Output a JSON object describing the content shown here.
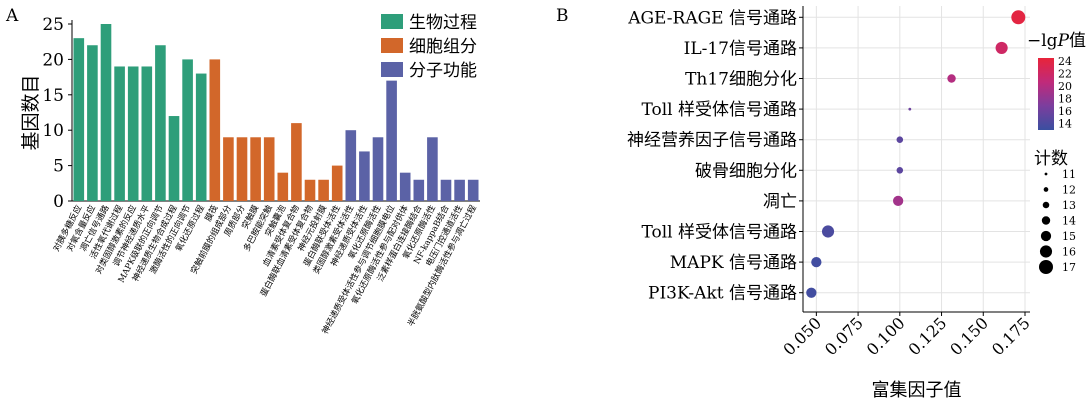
{
  "panel_a": {
    "letter": "A"
  },
  "panel_b": {
    "letter": "B"
  },
  "chart_data": [
    {
      "type": "bar",
      "title": "",
      "xlabel": "",
      "ylabel": "基因数目",
      "ylim": [
        0,
        25
      ],
      "yticks": [
        0,
        5,
        10,
        15,
        20,
        25
      ],
      "grid": false,
      "legend_position": "top-right",
      "series_colors": {
        "生物过程": "#2e9e7a",
        "细胞组分": "#d2672a",
        "分子功能": "#5b62a6"
      },
      "legend": [
        "生物过程",
        "细胞组分",
        "分子功能"
      ],
      "categories": [
        "对胰多糖反应",
        "对氧含量反应",
        "凋亡信号通路",
        "活性氧代谢过程",
        "对类固醇激素的反应",
        "调节神经递质水平",
        "MAPK级联的正向调节",
        "神经递质生物合成过程",
        "激酶活性的正向调节",
        "氧化还原过程",
        "膜筏",
        "突触前膜的组成部分",
        "周质部分",
        "突触膜",
        "多巴胺能突触",
        "突触囊泡",
        "血清素受体复合物",
        "蛋白酶联血清素受体复合物",
        "神经元投射膜",
        "蛋白酶联受体活性",
        "类固醇激素受体活性",
        "神经递质受体活性",
        "氧化还原酶活性",
        "神经递质受体活性参与调节细胞膜电位",
        "氧化还原酶活性参与配对供体",
        "泛素样蛋白连接酶结合",
        "氧化还原酶活性",
        "NF-kappaB结合",
        "电压门控通道活性",
        "半胱氨酸型内肽酶活性参与凋亡过程"
      ],
      "values": [
        23,
        22,
        25,
        19,
        19,
        19,
        22,
        12,
        20,
        18,
        20,
        9,
        9,
        9,
        9,
        4,
        11,
        3,
        3,
        5,
        10,
        7,
        9,
        17,
        4,
        3,
        9,
        3,
        3,
        3
      ],
      "groups": [
        "生物过程",
        "生物过程",
        "生物过程",
        "生物过程",
        "生物过程",
        "生物过程",
        "生物过程",
        "生物过程",
        "生物过程",
        "生物过程",
        "细胞组分",
        "细胞组分",
        "细胞组分",
        "细胞组分",
        "细胞组分",
        "细胞组分",
        "细胞组分",
        "细胞组分",
        "细胞组分",
        "细胞组分",
        "分子功能",
        "分子功能",
        "分子功能",
        "分子功能",
        "分子功能",
        "分子功能",
        "分子功能",
        "分子功能",
        "分子功能",
        "分子功能"
      ]
    },
    {
      "type": "scatter",
      "title": "",
      "xlabel": "富集因子值",
      "ylabel": "",
      "xlim": [
        0.042,
        0.178
      ],
      "xticks": [
        0.05,
        0.075,
        0.1,
        0.125,
        0.15,
        0.175
      ],
      "xtick_labels": [
        "0.050",
        "0.075",
        "0.100",
        "0.125",
        "0.150",
        "0.175"
      ],
      "grid": true,
      "categories": [
        "AGE-RAGE 信号通路",
        "IL-17信号通路",
        "Th17细胞分化",
        "Toll 样受体信号通路",
        "神经营养因子信号通路",
        "破骨细胞分化",
        "凋亡",
        "Toll 样受体信号通路",
        "MAPK 信号通路",
        "PI3K-Akt 信号通路"
      ],
      "x": [
        0.171,
        0.161,
        0.131,
        0.106,
        0.1,
        0.1,
        0.099,
        0.057,
        0.05,
        0.047
      ],
      "count": [
        17,
        16,
        14,
        11,
        13,
        13,
        15,
        16,
        15,
        15
      ],
      "neglogP": [
        24,
        22,
        20,
        16,
        15,
        15,
        19,
        14,
        13.5,
        13.5
      ],
      "color_legend": {
        "title_prefix": "−lg",
        "title_italic": "P",
        "title_suffix": "值",
        "ticks": [
          24,
          22,
          20,
          18,
          16,
          14
        ],
        "range": [
          13,
          24.5
        ]
      },
      "size_legend": {
        "title": "计数",
        "values": [
          11,
          12,
          13,
          14,
          15,
          16,
          17
        ]
      },
      "colorscale": [
        "#3a4fa0",
        "#7b3e9e",
        "#c02a7a",
        "#e8243a"
      ]
    }
  ]
}
